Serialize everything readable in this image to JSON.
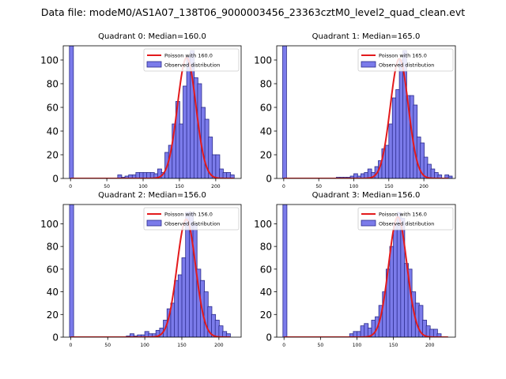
{
  "suptitle": "Data file: modeM0/AS1A07_138T06_9000003456_23363cztM0_level2_quad_clean.evt",
  "colors": {
    "bar_fill": "#7b7bea",
    "bar_edge": "#2a2a8c",
    "fit_line": "#e31a1c",
    "axis": "#000000"
  },
  "chart_data": [
    {
      "type": "bar",
      "title": "Quadrant 0: Median=160.0",
      "median": 160.0,
      "xlim": [
        -10,
        235
      ],
      "ylim": [
        0,
        112
      ],
      "xticks": [
        0,
        50,
        100,
        150,
        200
      ],
      "yticks": [
        0,
        20,
        40,
        60,
        80,
        100
      ],
      "bin_width": 5.5,
      "bins": [
        [
          -1.5,
          112
        ],
        [
          65,
          3
        ],
        [
          70,
          1
        ],
        [
          75,
          2
        ],
        [
          80,
          3
        ],
        [
          85,
          3
        ],
        [
          90,
          5
        ],
        [
          95,
          5
        ],
        [
          100,
          5
        ],
        [
          105,
          5
        ],
        [
          110,
          5
        ],
        [
          115,
          4
        ],
        [
          120,
          8
        ],
        [
          125,
          5
        ],
        [
          130,
          22
        ],
        [
          135,
          28
        ],
        [
          140,
          46
        ],
        [
          145,
          65
        ],
        [
          150,
          46
        ],
        [
          155,
          78
        ],
        [
          160,
          103
        ],
        [
          165,
          108
        ],
        [
          170,
          85
        ],
        [
          175,
          80
        ],
        [
          180,
          60
        ],
        [
          185,
          50
        ],
        [
          190,
          35
        ],
        [
          195,
          20
        ],
        [
          200,
          20
        ],
        [
          205,
          8
        ],
        [
          210,
          5
        ],
        [
          215,
          5
        ],
        [
          220,
          3
        ]
      ],
      "fit": {
        "label": "Poisson with 160.0",
        "lambda": 160.0,
        "peak": 102,
        "x_range": [
          0,
          225
        ]
      },
      "legend": {
        "fit": "Poisson with 160.0",
        "observed": "Observed distribution"
      }
    },
    {
      "type": "bar",
      "title": "Quadrant 1: Median=165.0",
      "median": 165.0,
      "xlim": [
        -10,
        245
      ],
      "ylim": [
        0,
        112
      ],
      "xticks": [
        0,
        50,
        100,
        150,
        200
      ],
      "yticks": [
        0,
        20,
        40,
        60,
        80,
        100
      ],
      "bin_width": 5.5,
      "bins": [
        [
          -1.5,
          112
        ],
        [
          75,
          1
        ],
        [
          80,
          1
        ],
        [
          85,
          1
        ],
        [
          90,
          1
        ],
        [
          95,
          2
        ],
        [
          100,
          4
        ],
        [
          105,
          2
        ],
        [
          110,
          4
        ],
        [
          115,
          5
        ],
        [
          120,
          8
        ],
        [
          125,
          5
        ],
        [
          130,
          10
        ],
        [
          135,
          15
        ],
        [
          140,
          25
        ],
        [
          145,
          28
        ],
        [
          150,
          46
        ],
        [
          155,
          68
        ],
        [
          160,
          75
        ],
        [
          165,
          100
        ],
        [
          170,
          108
        ],
        [
          175,
          70
        ],
        [
          180,
          70
        ],
        [
          185,
          62
        ],
        [
          190,
          35
        ],
        [
          195,
          30
        ],
        [
          200,
          18
        ],
        [
          205,
          12
        ],
        [
          210,
          8
        ],
        [
          215,
          5
        ],
        [
          220,
          3
        ],
        [
          230,
          3
        ],
        [
          235,
          2
        ]
      ],
      "fit": {
        "label": "Poisson with 165.0",
        "lambda": 165.0,
        "peak": 101,
        "x_range": [
          0,
          235
        ]
      },
      "legend": {
        "fit": "Poisson with 165.0",
        "observed": "Observed distribution"
      }
    },
    {
      "type": "bar",
      "title": "Quadrant 2: Median=156.0",
      "median": 156.0,
      "xlim": [
        -10,
        230
      ],
      "ylim": [
        0,
        117
      ],
      "xticks": [
        0,
        50,
        100,
        150,
        200
      ],
      "yticks": [
        0,
        20,
        40,
        60,
        80,
        100
      ],
      "bin_width": 5.5,
      "bins": [
        [
          -1.5,
          117
        ],
        [
          75,
          1
        ],
        [
          80,
          3
        ],
        [
          85,
          1
        ],
        [
          90,
          2
        ],
        [
          95,
          2
        ],
        [
          100,
          5
        ],
        [
          105,
          3
        ],
        [
          110,
          3
        ],
        [
          115,
          6
        ],
        [
          120,
          8
        ],
        [
          125,
          15
        ],
        [
          130,
          25
        ],
        [
          135,
          30
        ],
        [
          140,
          50
        ],
        [
          145,
          55
        ],
        [
          150,
          70
        ],
        [
          155,
          110
        ],
        [
          160,
          110
        ],
        [
          165,
          100
        ],
        [
          170,
          60
        ],
        [
          175,
          50
        ],
        [
          180,
          40
        ],
        [
          185,
          27
        ],
        [
          190,
          20
        ],
        [
          195,
          15
        ],
        [
          200,
          10
        ],
        [
          205,
          5
        ],
        [
          210,
          3
        ]
      ],
      "fit": {
        "label": "Poisson with 156.0",
        "lambda": 156.0,
        "peak": 104,
        "x_range": [
          0,
          215
        ]
      },
      "legend": {
        "fit": "Poisson with 156.0",
        "observed": "Observed distribution"
      }
    },
    {
      "type": "bar",
      "title": "Quadrant 3: Median=156.0",
      "median": 156.0,
      "xlim": [
        -10,
        235
      ],
      "ylim": [
        0,
        117
      ],
      "xticks": [
        0,
        50,
        100,
        150,
        200
      ],
      "yticks": [
        0,
        20,
        40,
        60,
        80,
        100
      ],
      "bin_width": 5.5,
      "bins": [
        [
          -1.5,
          117
        ],
        [
          90,
          3
        ],
        [
          95,
          5
        ],
        [
          100,
          5
        ],
        [
          105,
          10
        ],
        [
          110,
          12
        ],
        [
          115,
          8
        ],
        [
          120,
          15
        ],
        [
          125,
          18
        ],
        [
          130,
          28
        ],
        [
          135,
          40
        ],
        [
          140,
          60
        ],
        [
          145,
          80
        ],
        [
          150,
          100
        ],
        [
          155,
          110
        ],
        [
          160,
          105
        ],
        [
          165,
          65
        ],
        [
          170,
          60
        ],
        [
          175,
          40
        ],
        [
          180,
          30
        ],
        [
          185,
          28
        ],
        [
          190,
          15
        ],
        [
          195,
          10
        ],
        [
          200,
          7
        ],
        [
          205,
          7
        ],
        [
          210,
          3
        ]
      ],
      "fit": {
        "label": "Poisson with 156.0",
        "lambda": 156.0,
        "peak": 106,
        "x_range": [
          0,
          225
        ]
      },
      "legend": {
        "fit": "Poisson with 156.0",
        "observed": "Observed distribution"
      }
    }
  ]
}
